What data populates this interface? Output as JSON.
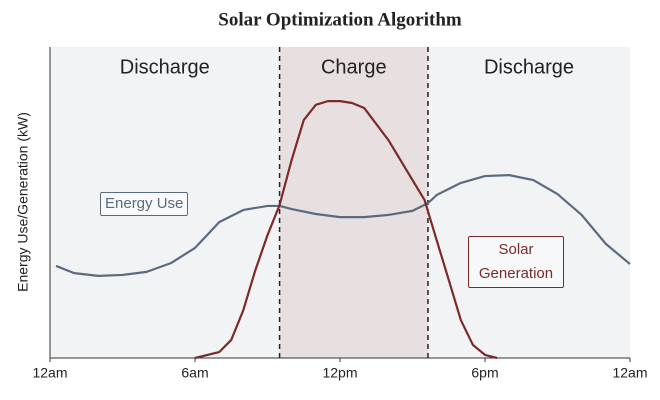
{
  "chart_data": {
    "type": "line",
    "title": "Solar Optimization Algorithm",
    "y_label": "Energy Use/Generation (kW)",
    "xlim": [
      0,
      24
    ],
    "xticks": [
      {
        "value": 0,
        "label": "12am"
      },
      {
        "value": 6,
        "label": "6am"
      },
      {
        "value": 12,
        "label": "12pm"
      },
      {
        "value": 18,
        "label": "6pm"
      },
      {
        "value": 24,
        "label": "12am"
      }
    ],
    "ylim": [
      0,
      10
    ],
    "regions": [
      {
        "label": "Discharge",
        "start": 0,
        "end": 9.5,
        "color": "#f2f3f5"
      },
      {
        "label": "Charge",
        "start": 9.5,
        "end": 15.64,
        "color": "#e8e0e0"
      },
      {
        "label": "Discharge",
        "start": 15.64,
        "end": 24,
        "color": "#f2f3f5"
      }
    ],
    "series": [
      {
        "name": "Energy Use",
        "color": "#5a6b7f",
        "x": [
          0.25,
          1,
          2,
          3,
          4,
          5,
          6,
          6.5,
          7,
          8,
          9,
          9.5,
          10,
          11,
          12,
          13,
          14,
          15,
          15.64,
          16,
          17,
          18,
          19,
          20,
          21,
          22,
          23,
          24
        ],
        "values": [
          2.96,
          2.73,
          2.64,
          2.67,
          2.77,
          3.05,
          3.54,
          3.95,
          4.37,
          4.76,
          4.89,
          4.89,
          4.79,
          4.63,
          4.53,
          4.53,
          4.6,
          4.73,
          4.98,
          5.24,
          5.63,
          5.85,
          5.88,
          5.72,
          5.27,
          4.6,
          3.67,
          3.02
        ]
      },
      {
        "name": "Solar Generation",
        "color": "#7b2a2a",
        "x": [
          6,
          7,
          7.5,
          8,
          8.5,
          9,
          9.5,
          10,
          10.5,
          11,
          11.5,
          12,
          12.5,
          13,
          14,
          15,
          15.5,
          16,
          16.5,
          17,
          17.5,
          18,
          18.5
        ],
        "values": [
          0,
          0.19,
          0.58,
          1.54,
          2.83,
          3.95,
          4.92,
          6.37,
          7.65,
          8.14,
          8.26,
          8.26,
          8.2,
          8.04,
          7.01,
          5.72,
          5.08,
          3.79,
          2.51,
          1.22,
          0.42,
          0.1,
          0
        ]
      }
    ]
  }
}
